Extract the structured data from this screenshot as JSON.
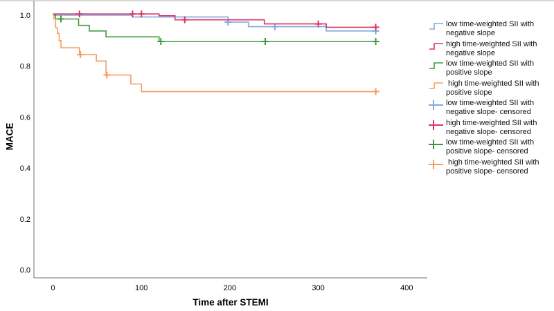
{
  "axes": {
    "y_label": "MACE",
    "x_label": "Time after STEMI",
    "y_ticks": [
      "0.0",
      "0.2",
      "0.4",
      "0.6",
      "0.8",
      "1.0"
    ],
    "x_ticks": [
      "0",
      "100",
      "200",
      "300",
      "400"
    ]
  },
  "chart_data": {
    "type": "line",
    "subtype": "kaplan-meier-step",
    "title": "",
    "xlabel": "Time after STEMI",
    "ylabel": "MACE",
    "xlim": [
      -21.5,
      423
    ],
    "ylim": [
      -0.031,
      1.049
    ],
    "x_ticks": [
      0,
      100,
      200,
      300,
      400
    ],
    "y_ticks": [
      0.0,
      0.2,
      0.4,
      0.6,
      0.8,
      1.0
    ],
    "grid": false,
    "legend_position": "right",
    "series": [
      {
        "name": "low time-weighted SII with negative slope",
        "color": "#7FA8E0",
        "points": [
          [
            0,
            1.0
          ],
          [
            90,
            1.0
          ],
          [
            90,
            0.993
          ],
          [
            198,
            0.993
          ],
          [
            198,
            0.973
          ],
          [
            221,
            0.973
          ],
          [
            221,
            0.955
          ],
          [
            309,
            0.955
          ],
          [
            309,
            0.938
          ],
          [
            365,
            0.938
          ]
        ],
        "censored": [
          [
            198,
            0.973
          ],
          [
            251,
            0.955
          ],
          [
            365,
            0.938
          ]
        ]
      },
      {
        "name": "high time-weighted SII with negative slope",
        "color": "#DC3360",
        "points": [
          [
            0,
            1.0
          ],
          [
            120,
            1.0
          ],
          [
            120,
            0.993
          ],
          [
            138,
            0.993
          ],
          [
            138,
            0.977
          ],
          [
            239,
            0.977
          ],
          [
            239,
            0.961
          ],
          [
            309,
            0.961
          ],
          [
            309,
            0.948
          ],
          [
            365,
            0.948
          ]
        ],
        "censored": [
          [
            30,
            1.0
          ],
          [
            90,
            1.0
          ],
          [
            100,
            1.0
          ],
          [
            149,
            0.977
          ],
          [
            300,
            0.961
          ],
          [
            365,
            0.948
          ]
        ]
      },
      {
        "name": "low time-weighted SII with positive slope",
        "color": "#3A9A3F",
        "points": [
          [
            0,
            1.0
          ],
          [
            3,
            1.0
          ],
          [
            3,
            0.985
          ],
          [
            29,
            0.985
          ],
          [
            29,
            0.96
          ],
          [
            41,
            0.96
          ],
          [
            41,
            0.938
          ],
          [
            60,
            0.938
          ],
          [
            60,
            0.915
          ],
          [
            120,
            0.915
          ],
          [
            120,
            0.897
          ],
          [
            365,
            0.897
          ]
        ],
        "censored": [
          [
            9,
            0.985
          ],
          [
            122,
            0.897
          ],
          [
            240,
            0.897
          ],
          [
            365,
            0.897
          ]
        ]
      },
      {
        "name": "high time-weighted SII with positive slope",
        "color": "#F79B61",
        "points": [
          [
            0,
            1.0
          ],
          [
            1,
            1.0
          ],
          [
            1,
            0.985
          ],
          [
            3,
            0.985
          ],
          [
            3,
            0.951
          ],
          [
            5,
            0.951
          ],
          [
            5,
            0.929
          ],
          [
            7,
            0.929
          ],
          [
            7,
            0.9
          ],
          [
            9,
            0.9
          ],
          [
            9,
            0.872
          ],
          [
            30,
            0.872
          ],
          [
            30,
            0.845
          ],
          [
            49,
            0.845
          ],
          [
            49,
            0.82
          ],
          [
            60,
            0.82
          ],
          [
            60,
            0.765
          ],
          [
            88,
            0.765
          ],
          [
            88,
            0.73
          ],
          [
            100,
            0.73
          ],
          [
            100,
            0.7
          ],
          [
            365,
            0.7
          ]
        ],
        "censored": [
          [
            31,
            0.845
          ],
          [
            61,
            0.765
          ],
          [
            365,
            0.7
          ]
        ]
      }
    ]
  },
  "legend": {
    "items": [
      {
        "line1": "low time-weighted SII with",
        "line2": "negative slope",
        "marker": "step",
        "color": "#7FA8E0"
      },
      {
        "line1": "high time-weighted SII with",
        "line2": "negative slope",
        "marker": "step",
        "color": "#DC3360"
      },
      {
        "line1": "low time-weighted SII with",
        "line2": "positive slope",
        "marker": "step",
        "color": "#3A9A3F"
      },
      {
        "line1": " high time-weighted SII with",
        "line2": "positive slope",
        "marker": "step",
        "color": "#F79B61"
      },
      {
        "line1": "low time-weighted SII with",
        "line2": "negative slope- censored",
        "marker": "plus",
        "color": "#7FA8E0"
      },
      {
        "line1": "high time-weighted SII with",
        "line2": "negative slope- censored",
        "marker": "plus",
        "color": "#DC3360"
      },
      {
        "line1": "low time-weighted SII with",
        "line2": "positive slope- censored",
        "marker": "plus",
        "color": "#3A9A3F"
      },
      {
        "line1": " high time-weighted SII with",
        "line2": "positive slope- censored",
        "marker": "plus",
        "color": "#F79B61"
      }
    ]
  },
  "frame": {
    "axis_color": "#6e6e6e",
    "border_color": "#b0b0b0",
    "tick_color": "#000000"
  }
}
